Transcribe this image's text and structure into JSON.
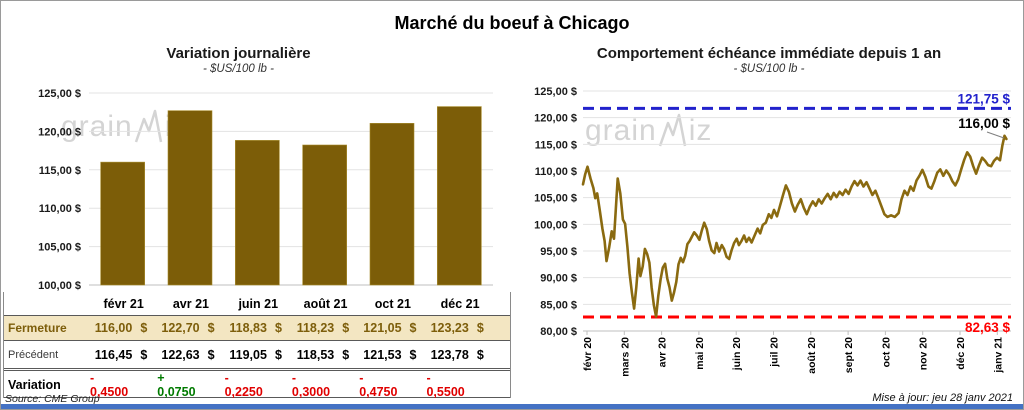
{
  "page": {
    "title": "Marché du boeuf à Chicago",
    "source": "Source: CME Group",
    "updated": "Mise à jour: jeu 28 janv 2021"
  },
  "watermark": {
    "part1": "grain",
    "part2": "iz"
  },
  "colors": {
    "gold": "#7c5d08",
    "line_gold": "#8a6a10",
    "ref_blue": "#2222cc",
    "ref_red": "#ff0000",
    "grid": "#e3e3e3",
    "axis": "#bfbfbf",
    "fermeture_bg": "#f3e6c2",
    "bottom_bar": "#4472c4"
  },
  "chart_data": [
    {
      "type": "bar",
      "title": "Variation  journalière",
      "subtitle": "- $US/100 lb -",
      "categories": [
        "févr 21",
        "avr 21",
        "juin 21",
        "août 21",
        "oct 21",
        "déc 21"
      ],
      "values": [
        116.0,
        122.7,
        118.83,
        118.23,
        121.05,
        123.23
      ],
      "ylabel_format": "money_fr",
      "ylim": [
        100,
        125
      ],
      "ytick_step": 5,
      "grid": true,
      "legend": "none"
    },
    {
      "type": "line",
      "title": "Comportement  échéance immédiate depuis 1 an",
      "subtitle": "- $US/100 lb -",
      "x_labels": [
        "févr 20",
        "mars 20",
        "avr 20",
        "mai 20",
        "juin 20",
        "juil 20",
        "août 20",
        "sept 20",
        "oct 20",
        "nov 20",
        "déc 20",
        "janv 21"
      ],
      "ylim": [
        80,
        125
      ],
      "ytick_step": 5,
      "grid": true,
      "legend": "none",
      "ref_high": {
        "value": 121.75,
        "label": "121,75 $"
      },
      "ref_low": {
        "value": 82.63,
        "label": "82,63 $"
      },
      "last_point": {
        "value": 116.0,
        "label": "116,00 $"
      },
      "points": [
        [
          0,
          107.5
        ],
        [
          0.06,
          109.4
        ],
        [
          0.12,
          110.8
        ],
        [
          0.2,
          108.6
        ],
        [
          0.28,
          106.8
        ],
        [
          0.33,
          104.9
        ],
        [
          0.38,
          105.8
        ],
        [
          0.45,
          102.6
        ],
        [
          0.52,
          99.2
        ],
        [
          0.58,
          96.9
        ],
        [
          0.63,
          93.1
        ],
        [
          0.7,
          95.6
        ],
        [
          0.77,
          98.7
        ],
        [
          0.83,
          97.3
        ],
        [
          0.88,
          102.8
        ],
        [
          0.93,
          108.6
        ],
        [
          1.0,
          105.8
        ],
        [
          1.07,
          100.9
        ],
        [
          1.13,
          100.1
        ],
        [
          1.19,
          95.8
        ],
        [
          1.25,
          90.8
        ],
        [
          1.31,
          87.2
        ],
        [
          1.37,
          84.2
        ],
        [
          1.43,
          88.2
        ],
        [
          1.49,
          93.6
        ],
        [
          1.54,
          90.3
        ],
        [
          1.6,
          92.1
        ],
        [
          1.66,
          95.4
        ],
        [
          1.72,
          94.4
        ],
        [
          1.78,
          92.8
        ],
        [
          1.84,
          88.2
        ],
        [
          1.9,
          84.8
        ],
        [
          1.96,
          82.7
        ],
        [
          2.02,
          86.6
        ],
        [
          2.08,
          89.7
        ],
        [
          2.14,
          91.9
        ],
        [
          2.2,
          92.6
        ],
        [
          2.26,
          89.8
        ],
        [
          2.32,
          88.2
        ],
        [
          2.38,
          85.7
        ],
        [
          2.44,
          87.2
        ],
        [
          2.5,
          89.2
        ],
        [
          2.56,
          92.5
        ],
        [
          2.62,
          93.7
        ],
        [
          2.68,
          92.9
        ],
        [
          2.74,
          94.1
        ],
        [
          2.8,
          96.3
        ],
        [
          2.86,
          96.9
        ],
        [
          2.92,
          97.7
        ],
        [
          2.98,
          98.5
        ],
        [
          3.05,
          97.9
        ],
        [
          3.12,
          97.1
        ],
        [
          3.18,
          98.7
        ],
        [
          3.25,
          100.3
        ],
        [
          3.32,
          99.1
        ],
        [
          3.38,
          96.9
        ],
        [
          3.45,
          95.1
        ],
        [
          3.52,
          94.6
        ],
        [
          3.58,
          96.5
        ],
        [
          3.65,
          94.9
        ],
        [
          3.72,
          96.1
        ],
        [
          3.78,
          95.4
        ],
        [
          3.85,
          93.9
        ],
        [
          3.92,
          93.5
        ],
        [
          3.98,
          95.1
        ],
        [
          4.05,
          96.5
        ],
        [
          4.12,
          97.3
        ],
        [
          4.18,
          96.1
        ],
        [
          4.25,
          96.9
        ],
        [
          4.32,
          97.9
        ],
        [
          4.38,
          96.7
        ],
        [
          4.45,
          97.5
        ],
        [
          4.52,
          96.6
        ],
        [
          4.6,
          97.9
        ],
        [
          4.68,
          99.2
        ],
        [
          4.75,
          98.3
        ],
        [
          4.82,
          99.9
        ],
        [
          4.9,
          100.3
        ],
        [
          4.98,
          101.9
        ],
        [
          5.05,
          101.2
        ],
        [
          5.12,
          102.7
        ],
        [
          5.2,
          101.5
        ],
        [
          5.28,
          103.4
        ],
        [
          5.36,
          105.4
        ],
        [
          5.44,
          107.3
        ],
        [
          5.52,
          106.1
        ],
        [
          5.6,
          103.9
        ],
        [
          5.68,
          102.4
        ],
        [
          5.76,
          103.7
        ],
        [
          5.84,
          104.7
        ],
        [
          5.92,
          103.1
        ],
        [
          6.0,
          101.9
        ],
        [
          6.08,
          103.3
        ],
        [
          6.16,
          104.3
        ],
        [
          6.24,
          103.5
        ],
        [
          6.32,
          104.7
        ],
        [
          6.4,
          103.9
        ],
        [
          6.48,
          104.9
        ],
        [
          6.56,
          105.7
        ],
        [
          6.64,
          104.7
        ],
        [
          6.72,
          105.9
        ],
        [
          6.8,
          105.1
        ],
        [
          6.88,
          106.1
        ],
        [
          6.96,
          105.5
        ],
        [
          7.04,
          106.5
        ],
        [
          7.12,
          105.7
        ],
        [
          7.2,
          107.1
        ],
        [
          7.28,
          108.1
        ],
        [
          7.36,
          107.3
        ],
        [
          7.44,
          108.2
        ],
        [
          7.52,
          107.1
        ],
        [
          7.6,
          107.9
        ],
        [
          7.68,
          106.7
        ],
        [
          7.76,
          105.5
        ],
        [
          7.84,
          106.3
        ],
        [
          7.92,
          104.9
        ],
        [
          8.0,
          103.4
        ],
        [
          8.08,
          101.9
        ],
        [
          8.16,
          101.4
        ],
        [
          8.26,
          101.7
        ],
        [
          8.36,
          101.4
        ],
        [
          8.46,
          102.1
        ],
        [
          8.54,
          104.7
        ],
        [
          8.62,
          106.3
        ],
        [
          8.7,
          105.5
        ],
        [
          8.78,
          107.1
        ],
        [
          8.86,
          106.3
        ],
        [
          8.94,
          108.2
        ],
        [
          9.02,
          109.1
        ],
        [
          9.1,
          110.2
        ],
        [
          9.18,
          108.9
        ],
        [
          9.26,
          107.1
        ],
        [
          9.34,
          106.7
        ],
        [
          9.42,
          108.1
        ],
        [
          9.5,
          109.7
        ],
        [
          9.58,
          110.3
        ],
        [
          9.66,
          109.1
        ],
        [
          9.74,
          110.1
        ],
        [
          9.82,
          109.3
        ],
        [
          9.9,
          108.1
        ],
        [
          9.98,
          107.3
        ],
        [
          10.06,
          108.4
        ],
        [
          10.14,
          110.3
        ],
        [
          10.22,
          112.1
        ],
        [
          10.3,
          113.5
        ],
        [
          10.38,
          112.7
        ],
        [
          10.46,
          110.9
        ],
        [
          10.54,
          109.5
        ],
        [
          10.62,
          111.1
        ],
        [
          10.7,
          112.5
        ],
        [
          10.78,
          111.9
        ],
        [
          10.86,
          111.1
        ],
        [
          10.94,
          110.9
        ],
        [
          11.02,
          111.9
        ],
        [
          11.1,
          112.5
        ],
        [
          11.18,
          112.0
        ],
        [
          11.24,
          114.7
        ],
        [
          11.3,
          116.6
        ],
        [
          11.35,
          116.0
        ]
      ]
    }
  ],
  "table": {
    "months": [
      "févr 21",
      "avr 21",
      "juin 21",
      "août 21",
      "oct 21",
      "déc 21"
    ],
    "rows": [
      {
        "label": "Fermeture",
        "class": "fermeture",
        "suffix": "$",
        "values": [
          "116,00",
          "122,70",
          "118,83",
          "118,23",
          "121,05",
          "123,23"
        ]
      },
      {
        "label": "Précédent",
        "class": "precedent",
        "suffix": "$",
        "values": [
          "116,45",
          "122,63",
          "119,05",
          "118,53",
          "121,53",
          "123,78"
        ]
      },
      {
        "label": "Variation",
        "class": "variation",
        "values": [
          {
            "t": "- 0,4500",
            "dir": "neg"
          },
          {
            "t": "+ 0,0750",
            "dir": "pos"
          },
          {
            "t": "- 0,2250",
            "dir": "neg"
          },
          {
            "t": "- 0,3000",
            "dir": "neg"
          },
          {
            "t": "- 0,4750",
            "dir": "neg"
          },
          {
            "t": "- 0,5500",
            "dir": "neg"
          }
        ]
      }
    ]
  }
}
